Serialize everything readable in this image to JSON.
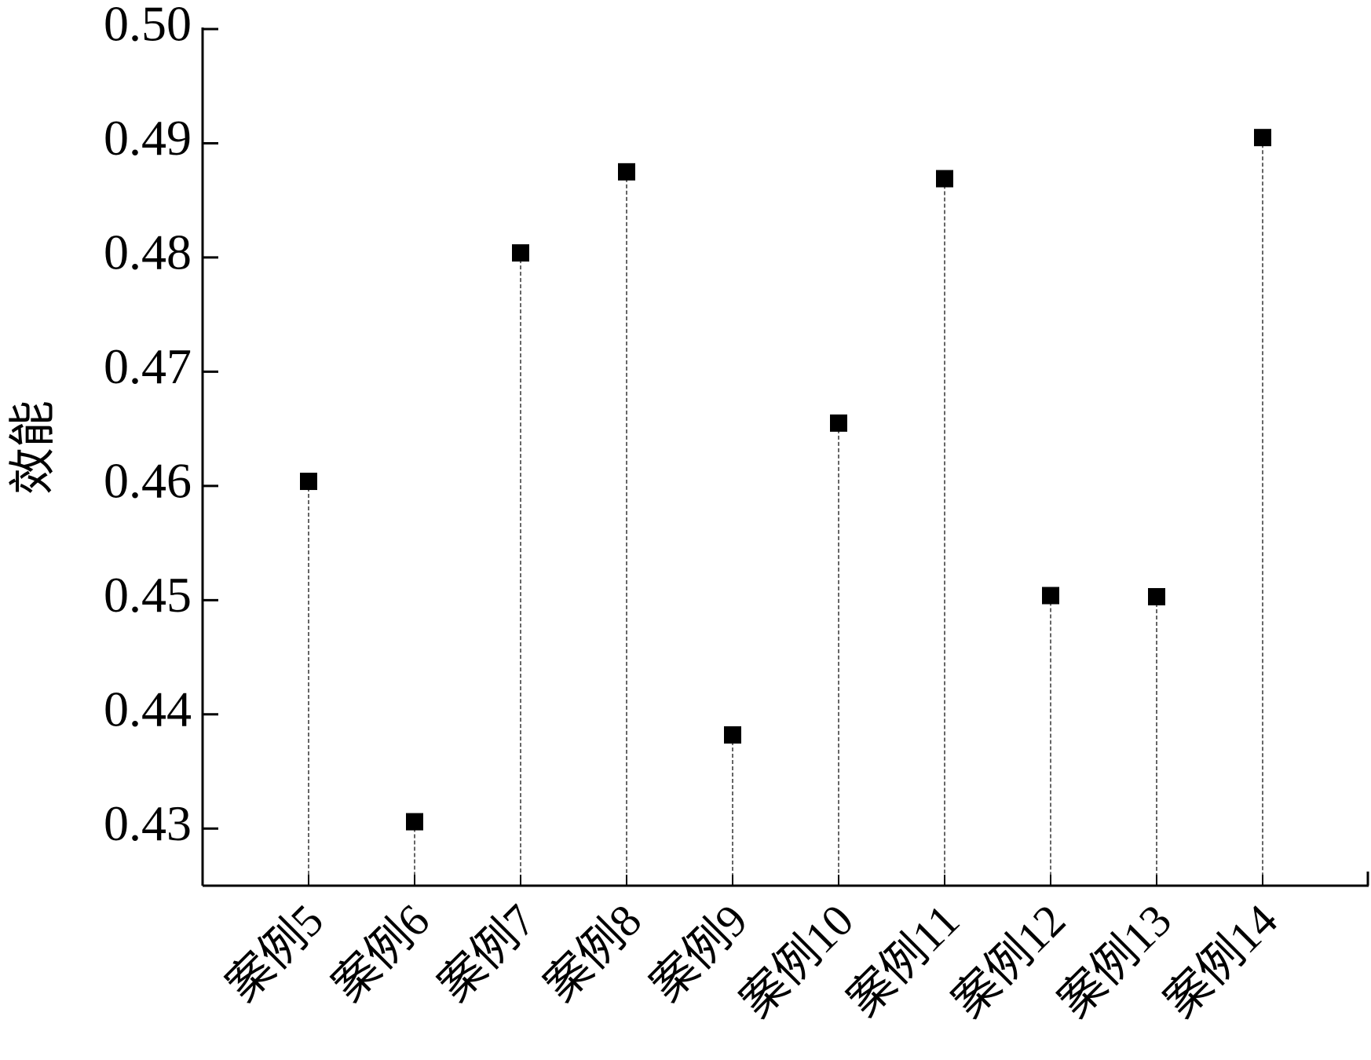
{
  "chart_data": {
    "type": "scatter",
    "y_label": "效能",
    "categories": [
      "案例5",
      "案例6",
      "案例7",
      "案例8",
      "案例9",
      "案例10",
      "案例11",
      "案例12",
      "案例13",
      "案例14"
    ],
    "values": [
      0.4604,
      0.4306,
      0.4804,
      0.4875,
      0.4382,
      0.4655,
      0.4869,
      0.4504,
      0.4503,
      0.4905
    ],
    "color": "#000000",
    "ylim": [
      0.425,
      0.5
    ],
    "yticks": [
      0.43,
      0.44,
      0.45,
      0.46,
      0.47,
      0.48,
      0.49,
      {
        "value": 0.5,
        "label": "0.50"
      }
    ],
    "drop_lines": true
  }
}
